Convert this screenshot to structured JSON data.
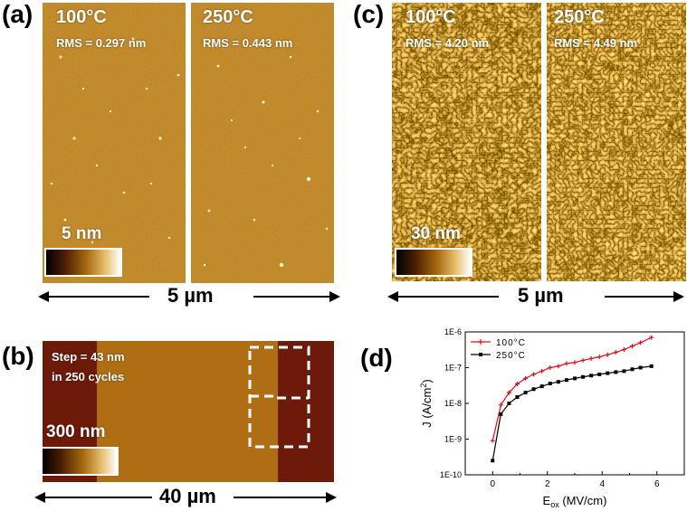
{
  "panels": {
    "a": {
      "label": "(a)",
      "left_temp": "100°C",
      "left_rms": "RMS = 0.297 nm",
      "right_temp": "250°C",
      "right_rms": "RMS = 0.443 nm",
      "scale_label": "5 nm",
      "dimension": "5 µm"
    },
    "b": {
      "label": "(b)",
      "step_line1": "Step = 43 nm",
      "step_line2": "in 250 cycles",
      "scale_label": "300 nm",
      "dimension": "40 µm"
    },
    "c": {
      "label": "(c)",
      "left_temp": "100°C",
      "left_rms": "RMS = 4.20 nm",
      "right_temp": "250°C",
      "right_rms": "RMS = 4.49 nm",
      "scale_label": "30 nm",
      "dimension": "5 µm"
    },
    "d": {
      "label": "(d)"
    }
  },
  "colors": {
    "afm_base": "#a86a10",
    "afm_dark": "#5a2a06",
    "afm_light": "#f0d080",
    "step_low": "#6e1a0a",
    "step_high": "#b06e14",
    "series_100": "#e0101a",
    "series_250": "#000000"
  },
  "chart_data": {
    "type": "line",
    "xlabel": "E",
    "xlabel_sub": "ox",
    "xlabel_unit": "(MV/cm)",
    "ylabel": "J (A/cm",
    "ylabel_sup": "2",
    "ylabel_end": ")",
    "yscale": "log",
    "xlim": [
      -1,
      7
    ],
    "ylim": [
      1e-10,
      1e-06
    ],
    "xticks": [
      0,
      2,
      4,
      6
    ],
    "xtick_labels": [
      "0",
      "2",
      "4",
      "6"
    ],
    "yticks": [
      1e-10,
      1e-09,
      1e-08,
      1e-07,
      1e-06
    ],
    "ytick_labels": [
      "1E-10",
      "1E-9",
      "1E-8",
      "1E-7",
      "1E-6"
    ],
    "legend_position": "top-left",
    "series": [
      {
        "name": "100°C",
        "marker": "plus",
        "x": [
          0,
          0.3,
          0.6,
          0.9,
          1.2,
          1.5,
          1.8,
          2.1,
          2.4,
          2.7,
          3.0,
          3.3,
          3.6,
          3.9,
          4.2,
          4.5,
          4.8,
          5.1,
          5.4,
          5.8
        ],
        "y": [
          9e-10,
          9e-09,
          2e-08,
          3.5e-08,
          5e-08,
          6.5e-08,
          8e-08,
          1e-07,
          1.1e-07,
          1.3e-07,
          1.4e-07,
          1.6e-07,
          1.8e-07,
          2e-07,
          2.3e-07,
          2.7e-07,
          3.2e-07,
          4e-07,
          5e-07,
          7e-07
        ]
      },
      {
        "name": "250°C",
        "marker": "square",
        "x": [
          0,
          0.3,
          0.6,
          0.9,
          1.2,
          1.5,
          1.8,
          2.1,
          2.4,
          2.7,
          3.0,
          3.3,
          3.6,
          3.9,
          4.2,
          4.5,
          4.8,
          5.1,
          5.4,
          5.8
        ],
        "y": [
          2.5e-10,
          5e-09,
          1e-08,
          1.5e-08,
          2e-08,
          2.5e-08,
          3e-08,
          3.6e-08,
          4e-08,
          4.5e-08,
          5e-08,
          5.5e-08,
          6e-08,
          6.5e-08,
          7e-08,
          7.5e-08,
          8e-08,
          9e-08,
          1e-07,
          1.1e-07
        ]
      }
    ]
  }
}
